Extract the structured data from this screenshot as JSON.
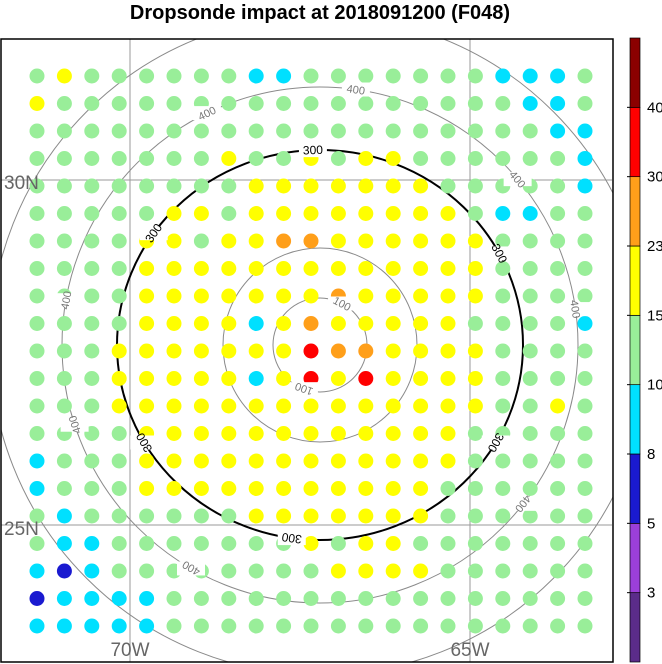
{
  "title": "Dropsonde impact at 2018091200 (F048)",
  "chart_data": {
    "type": "scatter",
    "title": "Dropsonde impact at 2018091200 (F048)",
    "map": {
      "lat_labels": [
        "30N",
        "25N"
      ],
      "lon_labels": [
        "70W",
        "65W"
      ]
    },
    "range_rings": {
      "values": [
        100,
        200,
        300,
        400,
        500
      ],
      "label_text": "100/300/400",
      "highlight_value": 300
    },
    "colorbar": {
      "tick_labels": [
        "3",
        "5",
        "8",
        "10",
        "15",
        "23",
        "30",
        "40"
      ],
      "bins": [
        {
          "max": 3,
          "color": "#5b2c8a"
        },
        {
          "max": 5,
          "color": "#9b3fd9"
        },
        {
          "max": 8,
          "color": "#1a1ad0"
        },
        {
          "max": 10,
          "color": "#00e0ff"
        },
        {
          "max": 15,
          "color": "#99ee99"
        },
        {
          "max": 23,
          "color": "#ffff00"
        },
        {
          "max": 30,
          "color": "#ff9f1a"
        },
        {
          "max": 40,
          "color": "#ff0000"
        },
        {
          "max": 50,
          "color": "#8b0000"
        }
      ]
    },
    "grid": {
      "rows": 20,
      "cols": 21,
      "values": [
        [
          12,
          18,
          12,
          12,
          12,
          12,
          12,
          12,
          9,
          9,
          12,
          12,
          12,
          12,
          12,
          12,
          12,
          9,
          9,
          9,
          12
        ],
        [
          18,
          12,
          12,
          12,
          12,
          12,
          12,
          12,
          12,
          12,
          12,
          12,
          12,
          12,
          12,
          12,
          12,
          12,
          9,
          9,
          12
        ],
        [
          12,
          12,
          12,
          12,
          12,
          12,
          12,
          12,
          12,
          12,
          12,
          12,
          12,
          12,
          12,
          12,
          12,
          12,
          12,
          9,
          9
        ],
        [
          12,
          12,
          12,
          12,
          12,
          12,
          12,
          18,
          12,
          12,
          18,
          12,
          18,
          18,
          12,
          12,
          12,
          12,
          12,
          12,
          9
        ],
        [
          12,
          12,
          12,
          12,
          12,
          12,
          12,
          12,
          18,
          18,
          18,
          18,
          18,
          18,
          18,
          12,
          12,
          12,
          12,
          12,
          9
        ],
        [
          12,
          12,
          12,
          12,
          12,
          18,
          18,
          12,
          18,
          18,
          18,
          18,
          18,
          18,
          18,
          18,
          12,
          9,
          9,
          12,
          12
        ],
        [
          12,
          12,
          12,
          12,
          18,
          18,
          12,
          18,
          18,
          26,
          26,
          18,
          18,
          18,
          18,
          18,
          18,
          12,
          12,
          12,
          12
        ],
        [
          12,
          12,
          12,
          12,
          18,
          18,
          18,
          18,
          18,
          18,
          18,
          18,
          18,
          18,
          18,
          18,
          18,
          12,
          12,
          12,
          12
        ],
        [
          12,
          12,
          12,
          12,
          18,
          18,
          18,
          18,
          18,
          18,
          18,
          26,
          18,
          18,
          18,
          18,
          18,
          12,
          12,
          12,
          12
        ],
        [
          12,
          12,
          12,
          12,
          18,
          18,
          18,
          18,
          9,
          18,
          26,
          18,
          18,
          18,
          18,
          18,
          12,
          12,
          12,
          12,
          9
        ],
        [
          12,
          12,
          12,
          18,
          18,
          18,
          18,
          18,
          18,
          18,
          35,
          26,
          26,
          18,
          18,
          18,
          18,
          12,
          12,
          12,
          12
        ],
        [
          12,
          12,
          12,
          18,
          18,
          18,
          18,
          18,
          9,
          18,
          35,
          18,
          35,
          18,
          18,
          18,
          18,
          12,
          12,
          12,
          12
        ],
        [
          12,
          12,
          12,
          18,
          18,
          18,
          18,
          18,
          18,
          18,
          18,
          18,
          18,
          18,
          18,
          18,
          18,
          12,
          12,
          18,
          12
        ],
        [
          12,
          12,
          12,
          12,
          18,
          18,
          18,
          18,
          18,
          18,
          18,
          18,
          18,
          18,
          18,
          18,
          12,
          12,
          12,
          12,
          12
        ],
        [
          9,
          12,
          12,
          12,
          18,
          18,
          18,
          18,
          18,
          18,
          18,
          18,
          18,
          18,
          18,
          18,
          12,
          12,
          12,
          12,
          12
        ],
        [
          9,
          12,
          12,
          12,
          18,
          18,
          18,
          18,
          18,
          18,
          18,
          18,
          18,
          18,
          18,
          12,
          12,
          12,
          12,
          12,
          12
        ],
        [
          12,
          9,
          12,
          12,
          12,
          12,
          12,
          12,
          18,
          18,
          18,
          18,
          18,
          18,
          18,
          12,
          12,
          12,
          12,
          12,
          12
        ],
        [
          12,
          9,
          9,
          12,
          12,
          12,
          12,
          12,
          12,
          12,
          18,
          12,
          18,
          18,
          12,
          12,
          12,
          12,
          12,
          12,
          12
        ],
        [
          9,
          6.5,
          9,
          12,
          12,
          12,
          12,
          12,
          12,
          12,
          12,
          18,
          18,
          18,
          18,
          12,
          12,
          12,
          12,
          12,
          12
        ],
        [
          6.5,
          9,
          9,
          9,
          9,
          12,
          12,
          12,
          12,
          12,
          12,
          12,
          12,
          12,
          12,
          12,
          12,
          12,
          12,
          12,
          12
        ]
      ],
      "extra_row": [
        9,
        9,
        9,
        9,
        9,
        12,
        12,
        12,
        12,
        12,
        12,
        12,
        12,
        12,
        12,
        12,
        12,
        12,
        12,
        12,
        12
      ]
    },
    "grid_on": true,
    "legend": "right"
  }
}
